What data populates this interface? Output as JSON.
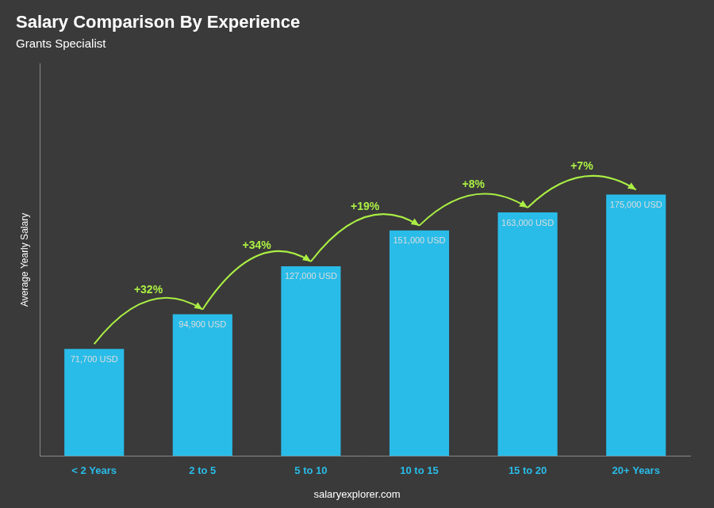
{
  "chart_data": {
    "type": "bar",
    "title": "Salary Comparison By Experience",
    "subtitle": "Grants Specialist",
    "categories": [
      "< 2 Years",
      "2 to 5",
      "5 to 10",
      "10 to 15",
      "15 to 20",
      "20+ Years"
    ],
    "values": [
      71700,
      94900,
      127000,
      151000,
      163000,
      175000
    ],
    "value_labels": [
      "71,700 USD",
      "94,900 USD",
      "127,000 USD",
      "151,000 USD",
      "163,000 USD",
      "175,000 USD"
    ],
    "data_labels": true,
    "color": "#29bce8",
    "ylabel": "Average Yearly Salary",
    "ylim": [
      0,
      262500
    ],
    "tick_labels": "x",
    "grid": false,
    "annotations": [
      {
        "text": "+32%",
        "from": "< 2 Years",
        "to": "2 to 5",
        "color": "#aaee44"
      },
      {
        "text": "+34%",
        "from": "2 to 5",
        "to": "5 to 10",
        "color": "#aaee44"
      },
      {
        "text": "+19%",
        "from": "5 to 10",
        "to": "10 to 15",
        "color": "#aaee44"
      },
      {
        "text": "+8%",
        "from": "10 to 15",
        "to": "15 to 20",
        "color": "#aaee44"
      },
      {
        "text": "+7%",
        "from": "15 to 20",
        "to": "20+ Years",
        "color": "#aaee44"
      }
    ],
    "footer": "salaryexplorer.com"
  }
}
